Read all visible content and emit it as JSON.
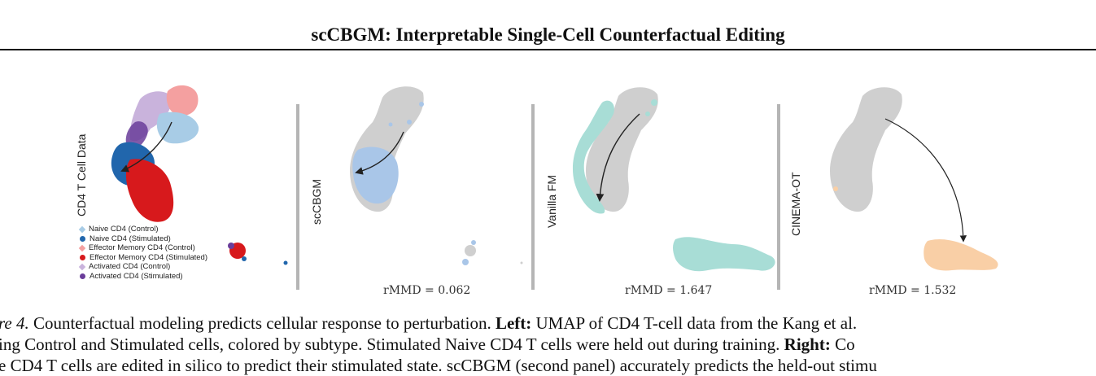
{
  "header": {
    "title": "scCBGM: Interpretable Single-Cell Counterfactual Editing"
  },
  "panels": {
    "data_label": "CD4 T Cell Data",
    "method1_label": "scCBGM",
    "method2_label": "Vanilla FM",
    "method3_label": "CINEMA-OT",
    "method1_metric": "rMMD = 0.062",
    "method2_metric": "rMMD = 1.647",
    "method3_metric": "rMMD = 1.532"
  },
  "legend": [
    {
      "label": "Naive CD4 (Control)",
      "color": "#a8cce6",
      "marker": "diamond"
    },
    {
      "label": "Naive CD4 (Stimulated)",
      "color": "#2166ac",
      "marker": "circle"
    },
    {
      "label": "Effector Memory CD4 (Control)",
      "color": "#f4a0a0",
      "marker": "diamond"
    },
    {
      "label": "Effector Memory CD4 (Stimulated)",
      "color": "#d7191c",
      "marker": "circle"
    },
    {
      "label": "Activated CD4 (Control)",
      "color": "#c9b3dc",
      "marker": "diamond"
    },
    {
      "label": "Activated CD4 (Stimulated)",
      "color": "#6a3d9a",
      "marker": "circle"
    }
  ],
  "caption": {
    "line1_prefix": "re 4.",
    "line1_text": " Counterfactual modeling predicts cellular response to perturbation. ",
    "line1_bold": "Left:",
    "line1_tail": " UMAP of CD4 T-cell data from the Kang et al.",
    "line2_text": "ing Control and Stimulated cells, colored by subtype. Stimulated Naive CD4 T cells were held out during training. ",
    "line2_bold": "Right:",
    "line2_tail": " Co",
    "line3_text": "e CD4 T cells are edited in silico to predict their stimulated state. scCBGM (second panel) accurately predicts the held-out stimu"
  },
  "colors": {
    "gray_cells": "#cfcfcf",
    "sccbgm_pred": "#a9c6e8",
    "vanilla_pred": "#a8ddd6",
    "cinema_pred": "#f9cfa6"
  }
}
